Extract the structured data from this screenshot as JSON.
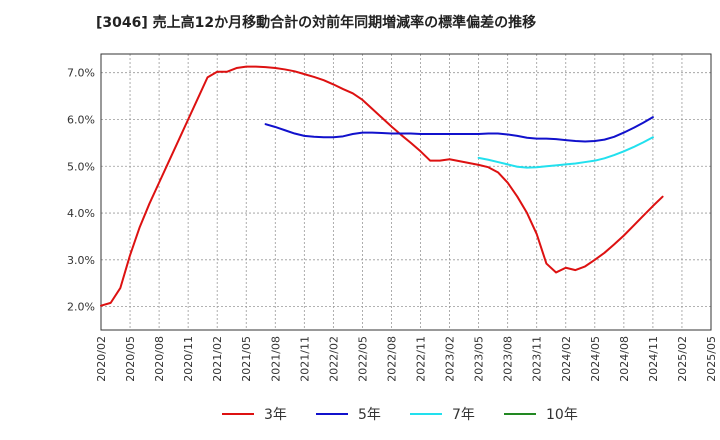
{
  "chart_data": {
    "type": "line",
    "title": "[3046]  売上高12か月移動合計の対前年同期増減率の標準偏差の推移",
    "xlabel": "",
    "ylabel": "",
    "x_ticks": [
      "2020/02",
      "2020/05",
      "2020/08",
      "2020/11",
      "2021/02",
      "2021/05",
      "2021/08",
      "2021/11",
      "2022/02",
      "2022/05",
      "2022/08",
      "2022/11",
      "2023/02",
      "2023/05",
      "2023/08",
      "2023/11",
      "2024/02",
      "2024/05",
      "2024/08",
      "2024/11",
      "2025/02",
      "2025/05"
    ],
    "y_ticks": [
      "2.0%",
      "3.0%",
      "4.0%",
      "5.0%",
      "6.0%",
      "7.0%"
    ],
    "y_tick_values": [
      2.0,
      3.0,
      4.0,
      5.0,
      6.0,
      7.0
    ],
    "ylim": [
      1.5,
      7.4
    ],
    "xlim": [
      "2020/02",
      "2025/05"
    ],
    "grid": true,
    "legend_position": "bottom",
    "series": [
      {
        "name": "3年",
        "color": "#dd1111",
        "points": [
          [
            "2020/02",
            2.02
          ],
          [
            "2020/03",
            2.08
          ],
          [
            "2020/04",
            2.4
          ],
          [
            "2020/05",
            3.1
          ],
          [
            "2020/06",
            3.7
          ],
          [
            "2020/07",
            4.2
          ],
          [
            "2020/08",
            4.65
          ],
          [
            "2020/09",
            5.1
          ],
          [
            "2020/10",
            5.55
          ],
          [
            "2020/11",
            6.0
          ],
          [
            "2020/12",
            6.45
          ],
          [
            "2021/01",
            6.9
          ],
          [
            "2021/02",
            7.02
          ],
          [
            "2021/03",
            7.02
          ],
          [
            "2021/04",
            7.1
          ],
          [
            "2021/05",
            7.13
          ],
          [
            "2021/06",
            7.13
          ],
          [
            "2021/07",
            7.12
          ],
          [
            "2021/08",
            7.1
          ],
          [
            "2021/09",
            7.07
          ],
          [
            "2021/10",
            7.03
          ],
          [
            "2021/11",
            6.97
          ],
          [
            "2021/12",
            6.91
          ],
          [
            "2022/01",
            6.84
          ],
          [
            "2022/02",
            6.75
          ],
          [
            "2022/03",
            6.65
          ],
          [
            "2022/04",
            6.56
          ],
          [
            "2022/05",
            6.42
          ],
          [
            "2022/06",
            6.23
          ],
          [
            "2022/07",
            6.04
          ],
          [
            "2022/08",
            5.85
          ],
          [
            "2022/09",
            5.67
          ],
          [
            "2022/10",
            5.5
          ],
          [
            "2022/11",
            5.32
          ],
          [
            "2022/12",
            5.12
          ],
          [
            "2023/01",
            5.12
          ],
          [
            "2023/02",
            5.15
          ],
          [
            "2023/03",
            5.11
          ],
          [
            "2023/04",
            5.07
          ],
          [
            "2023/05",
            5.03
          ],
          [
            "2023/06",
            4.98
          ],
          [
            "2023/07",
            4.87
          ],
          [
            "2023/08",
            4.65
          ],
          [
            "2023/09",
            4.35
          ],
          [
            "2023/10",
            4.0
          ],
          [
            "2023/11",
            3.55
          ],
          [
            "2023/12",
            2.92
          ],
          [
            "2024/01",
            2.73
          ],
          [
            "2024/02",
            2.83
          ],
          [
            "2024/03",
            2.78
          ],
          [
            "2024/04",
            2.86
          ],
          [
            "2024/05",
            3.0
          ],
          [
            "2024/06",
            3.15
          ],
          [
            "2024/07",
            3.33
          ],
          [
            "2024/08",
            3.52
          ],
          [
            "2024/09",
            3.73
          ],
          [
            "2024/10",
            3.94
          ],
          [
            "2024/11",
            4.15
          ],
          [
            "2024/12",
            4.35
          ]
        ]
      },
      {
        "name": "5年",
        "color": "#1111cc",
        "points": [
          [
            "2021/07",
            5.9
          ],
          [
            "2021/08",
            5.84
          ],
          [
            "2021/09",
            5.77
          ],
          [
            "2021/10",
            5.7
          ],
          [
            "2021/11",
            5.65
          ],
          [
            "2021/12",
            5.63
          ],
          [
            "2022/01",
            5.62
          ],
          [
            "2022/02",
            5.62
          ],
          [
            "2022/03",
            5.64
          ],
          [
            "2022/04",
            5.69
          ],
          [
            "2022/05",
            5.72
          ],
          [
            "2022/06",
            5.72
          ],
          [
            "2022/07",
            5.71
          ],
          [
            "2022/08",
            5.7
          ],
          [
            "2022/09",
            5.7
          ],
          [
            "2022/10",
            5.7
          ],
          [
            "2022/11",
            5.69
          ],
          [
            "2022/12",
            5.69
          ],
          [
            "2023/01",
            5.69
          ],
          [
            "2023/02",
            5.69
          ],
          [
            "2023/03",
            5.69
          ],
          [
            "2023/04",
            5.69
          ],
          [
            "2023/05",
            5.69
          ],
          [
            "2023/06",
            5.7
          ],
          [
            "2023/07",
            5.7
          ],
          [
            "2023/08",
            5.68
          ],
          [
            "2023/09",
            5.65
          ],
          [
            "2023/10",
            5.61
          ],
          [
            "2023/11",
            5.59
          ],
          [
            "2023/12",
            5.59
          ],
          [
            "2024/01",
            5.58
          ],
          [
            "2024/02",
            5.56
          ],
          [
            "2024/03",
            5.54
          ],
          [
            "2024/04",
            5.53
          ],
          [
            "2024/05",
            5.54
          ],
          [
            "2024/06",
            5.57
          ],
          [
            "2024/07",
            5.63
          ],
          [
            "2024/08",
            5.72
          ],
          [
            "2024/09",
            5.82
          ],
          [
            "2024/10",
            5.93
          ],
          [
            "2024/11",
            6.05
          ]
        ]
      },
      {
        "name": "7年",
        "color": "#22e0ee",
        "points": [
          [
            "2023/05",
            5.18
          ],
          [
            "2023/06",
            5.14
          ],
          [
            "2023/07",
            5.09
          ],
          [
            "2023/08",
            5.04
          ],
          [
            "2023/09",
            4.99
          ],
          [
            "2023/10",
            4.97
          ],
          [
            "2023/11",
            4.98
          ],
          [
            "2023/12",
            5.0
          ],
          [
            "2024/01",
            5.02
          ],
          [
            "2024/02",
            5.04
          ],
          [
            "2024/03",
            5.06
          ],
          [
            "2024/04",
            5.09
          ],
          [
            "2024/05",
            5.12
          ],
          [
            "2024/06",
            5.17
          ],
          [
            "2024/07",
            5.24
          ],
          [
            "2024/08",
            5.32
          ],
          [
            "2024/09",
            5.41
          ],
          [
            "2024/10",
            5.51
          ],
          [
            "2024/11",
            5.62
          ]
        ]
      },
      {
        "name": "10年",
        "color": "#228822",
        "points": []
      }
    ]
  }
}
